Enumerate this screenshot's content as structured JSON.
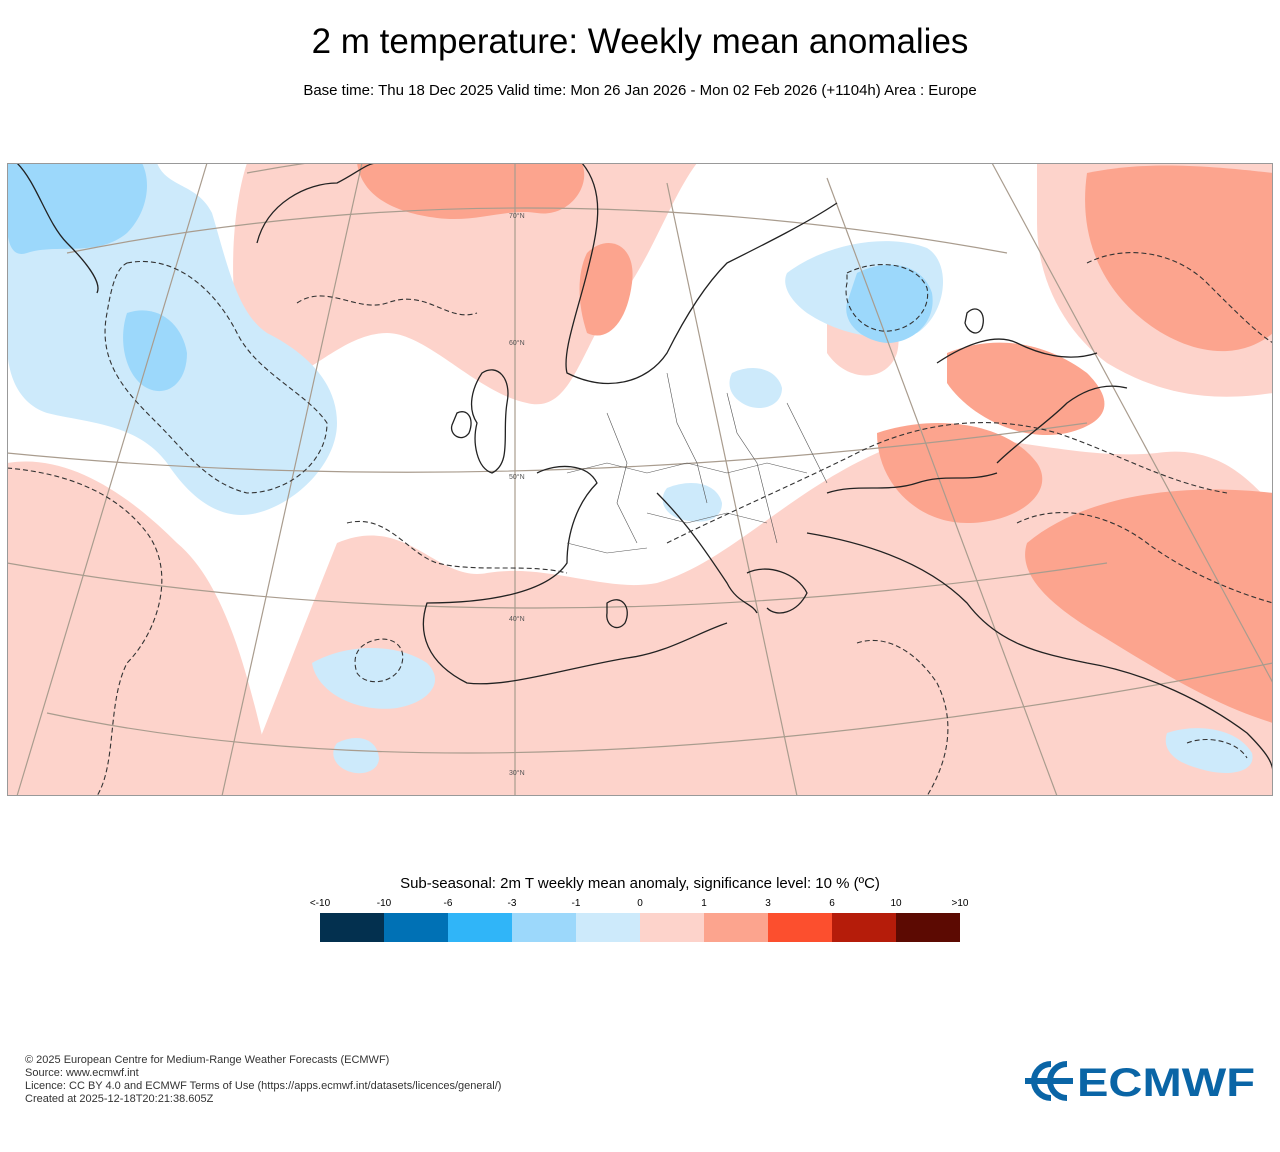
{
  "header": {
    "title": "2 m temperature: Weekly mean anomalies",
    "subtitle": "Base time: Thu 18 Dec 2025 Valid time: Mon 26 Jan 2026 - Mon 02 Feb 2026 (+1104h) Area : Europe"
  },
  "map": {
    "area": "Europe",
    "latitude_labels": [
      "70°N",
      "60°N",
      "50°N",
      "40°N",
      "30°N"
    ],
    "colors": {
      "strong_warm": "#fca48e",
      "warm": "#fdd3cb",
      "cool": "#cdeafb",
      "cold": "#9cd8fb",
      "coast": "#222222",
      "grid": "#a99c8e"
    }
  },
  "legend": {
    "title": "Sub-seasonal: 2m T weekly mean anomaly, significance level: 10 % (ºC)",
    "labels": [
      "<-10",
      "-10",
      "-6",
      "-3",
      "-1",
      "0",
      "1",
      "3",
      "6",
      "10",
      ">10"
    ],
    "colors": [
      "#03304f",
      "#0071b5",
      "#30b5f8",
      "#9cd8fb",
      "#cdeafb",
      "#fdd3cb",
      "#fca48e",
      "#fc4f2e",
      "#b51c0a",
      "#5c0a02"
    ]
  },
  "footer": {
    "copyright": "© 2025 European Centre for Medium-Range Weather Forecasts (ECMWF)",
    "source": "Source: www.ecmwf.int",
    "licence": "Licence: CC BY 4.0 and ECMWF Terms of Use (https://apps.ecmwf.int/datasets/licences/general/)",
    "created": "Created at 2025-12-18T20:21:38.605Z"
  },
  "logo": {
    "text": "ECMWF",
    "color": "#0a65a6"
  }
}
